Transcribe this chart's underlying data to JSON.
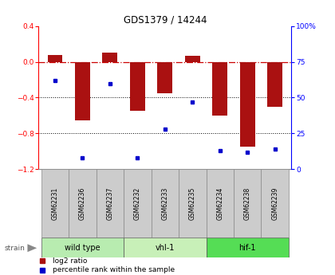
{
  "title": "GDS1379 / 14244",
  "samples": [
    "GSM62231",
    "GSM62236",
    "GSM62237",
    "GSM62232",
    "GSM62233",
    "GSM62235",
    "GSM62234",
    "GSM62238",
    "GSM62239"
  ],
  "log2_ratio": [
    0.08,
    -0.65,
    0.1,
    -0.55,
    -0.35,
    0.07,
    -0.6,
    -0.95,
    -0.5
  ],
  "percentile_rank": [
    62,
    8,
    60,
    8,
    28,
    47,
    13,
    12,
    14
  ],
  "groups": [
    {
      "label": "wild type",
      "indices": [
        0,
        1,
        2
      ],
      "color": "#b8ecb0"
    },
    {
      "label": "vhl-1",
      "indices": [
        3,
        4,
        5
      ],
      "color": "#c8f0b8"
    },
    {
      "label": "hif-1",
      "indices": [
        6,
        7,
        8
      ],
      "color": "#55dd55"
    }
  ],
  "ylim_left": [
    -1.2,
    0.4
  ],
  "ylim_right": [
    0,
    100
  ],
  "right_ticks": [
    0,
    25,
    50,
    75,
    100
  ],
  "right_tick_labels": [
    "0",
    "25",
    "50",
    "75",
    "100%"
  ],
  "left_ticks": [
    -1.2,
    -0.8,
    -0.4,
    0.0,
    0.4
  ],
  "bar_color": "#aa1111",
  "dot_color": "#0000cc",
  "bar_width": 0.55,
  "hline_color": "#cc0000",
  "bg_color": "#ffffff",
  "legend_red_label": "log2 ratio",
  "legend_blue_label": "percentile rank within the sample",
  "strain_label": "strain"
}
